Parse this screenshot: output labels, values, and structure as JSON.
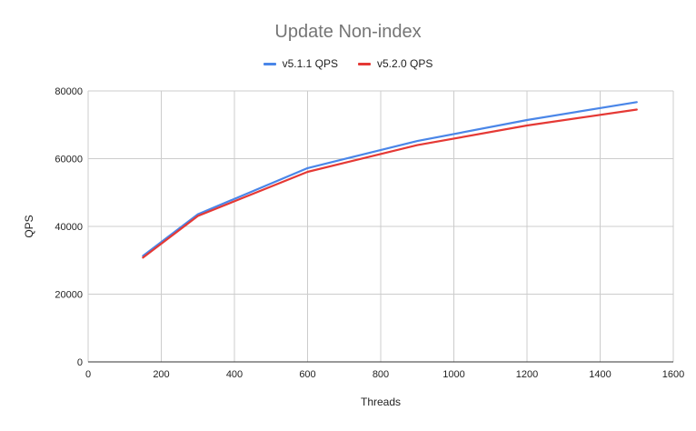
{
  "chart_data": {
    "type": "line",
    "title": "Update Non-index",
    "xlabel": "Threads",
    "ylabel": "QPS",
    "xlim": [
      0,
      1600
    ],
    "ylim": [
      0,
      80000
    ],
    "xticks": [
      "0",
      "200",
      "400",
      "600",
      "800",
      "1000",
      "1200",
      "1400",
      "1600"
    ],
    "yticks": [
      "0",
      "20000",
      "40000",
      "60000",
      "80000"
    ],
    "grid": true,
    "legend_position": "top",
    "x": [
      150,
      300,
      600,
      900,
      1200,
      1500
    ],
    "series": [
      {
        "name": "v5.1.1 QPS",
        "color": "#4a86e8",
        "values": [
          31300,
          43600,
          57200,
          65200,
          71400,
          76700
        ]
      },
      {
        "name": "v5.2.0 QPS",
        "color": "#e53935",
        "values": [
          30800,
          43100,
          56100,
          64000,
          69800,
          74500
        ]
      }
    ]
  }
}
